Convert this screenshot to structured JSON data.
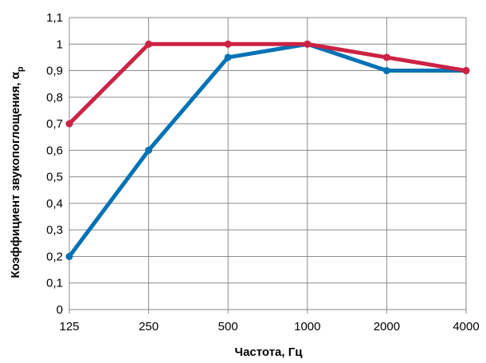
{
  "chart_data": {
    "type": "line",
    "categories": [
      "125",
      "250",
      "500",
      "1000",
      "2000",
      "4000"
    ],
    "series": [
      {
        "values": [
          0.2,
          0.6,
          0.95,
          1.0,
          0.9,
          0.9
        ],
        "color": "#0072b5"
      },
      {
        "values": [
          0.7,
          1.0,
          1.0,
          1.0,
          0.95,
          0.9
        ],
        "color": "#cc2244"
      }
    ],
    "xlabel": "Частота, Гц",
    "ylabel_main": "Коэффициент звукопоглощения, α",
    "ylabel_sub": "p",
    "ylim": [
      0,
      1.1
    ],
    "y_ticks": [
      0,
      0.1,
      0.2,
      0.3,
      0.4,
      0.5,
      0.6,
      0.7,
      0.8,
      0.9,
      1,
      1.1
    ],
    "y_tick_labels": [
      "0",
      "0,1",
      "0,2",
      "0,3",
      "0,4",
      "0,5",
      "0,6",
      "0,7",
      "0,8",
      "0,9",
      "1",
      "1,1"
    ],
    "grid": true
  }
}
